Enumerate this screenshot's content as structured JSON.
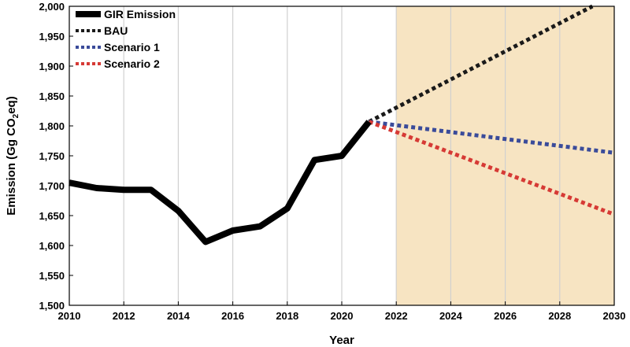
{
  "chart_data": {
    "type": "line",
    "xlabel": "Year",
    "ylabel_main": "Emission (Gg CO",
    "ylabel_sub": "2",
    "ylabel_end": "eq)",
    "xlim": [
      2010,
      2030
    ],
    "ylim": [
      1500,
      2000
    ],
    "x_ticks": [
      2010,
      2012,
      2014,
      2016,
      2018,
      2020,
      2022,
      2024,
      2026,
      2028,
      2030
    ],
    "y_ticks": [
      1500,
      1550,
      1600,
      1650,
      1700,
      1750,
      1800,
      1850,
      1900,
      1950,
      2000
    ],
    "y_tick_labels": [
      "1,500",
      "1,550",
      "1,600",
      "1,650",
      "1,700",
      "1,750",
      "1,800",
      "1,850",
      "1,900",
      "1,950",
      "2,000"
    ],
    "x_tick_labels": [
      "2010",
      "2012",
      "2014",
      "2016",
      "2018",
      "2020",
      "2022",
      "2024",
      "2026",
      "2028",
      "2030"
    ],
    "grid": "vertical",
    "shaded_region": {
      "x_start": 2022,
      "x_end": 2030,
      "color": "#f7e4c2"
    },
    "legend_position": "top-left",
    "series": [
      {
        "name": "GIR Emission",
        "style": "solid",
        "color": "#000000",
        "x": [
          2010,
          2011,
          2012,
          2013,
          2014,
          2015,
          2016,
          2017,
          2018,
          2019,
          2020,
          2021
        ],
        "y": [
          1705,
          1696,
          1693,
          1693,
          1658,
          1606,
          1625,
          1632,
          1662,
          1743,
          1750,
          1807
        ]
      },
      {
        "name": "BAU",
        "style": "dotted",
        "color": "#1a1a1a",
        "x": [
          2021,
          2029.2
        ],
        "y": [
          1807,
          2000
        ]
      },
      {
        "name": "Scenario 1",
        "style": "dotted",
        "color": "#3a4b9a",
        "x": [
          2021,
          2030
        ],
        "y": [
          1807,
          1755
        ]
      },
      {
        "name": "Scenario 2",
        "style": "dotted",
        "color": "#d63a35",
        "x": [
          2021,
          2030
        ],
        "y": [
          1807,
          1652
        ]
      }
    ]
  }
}
